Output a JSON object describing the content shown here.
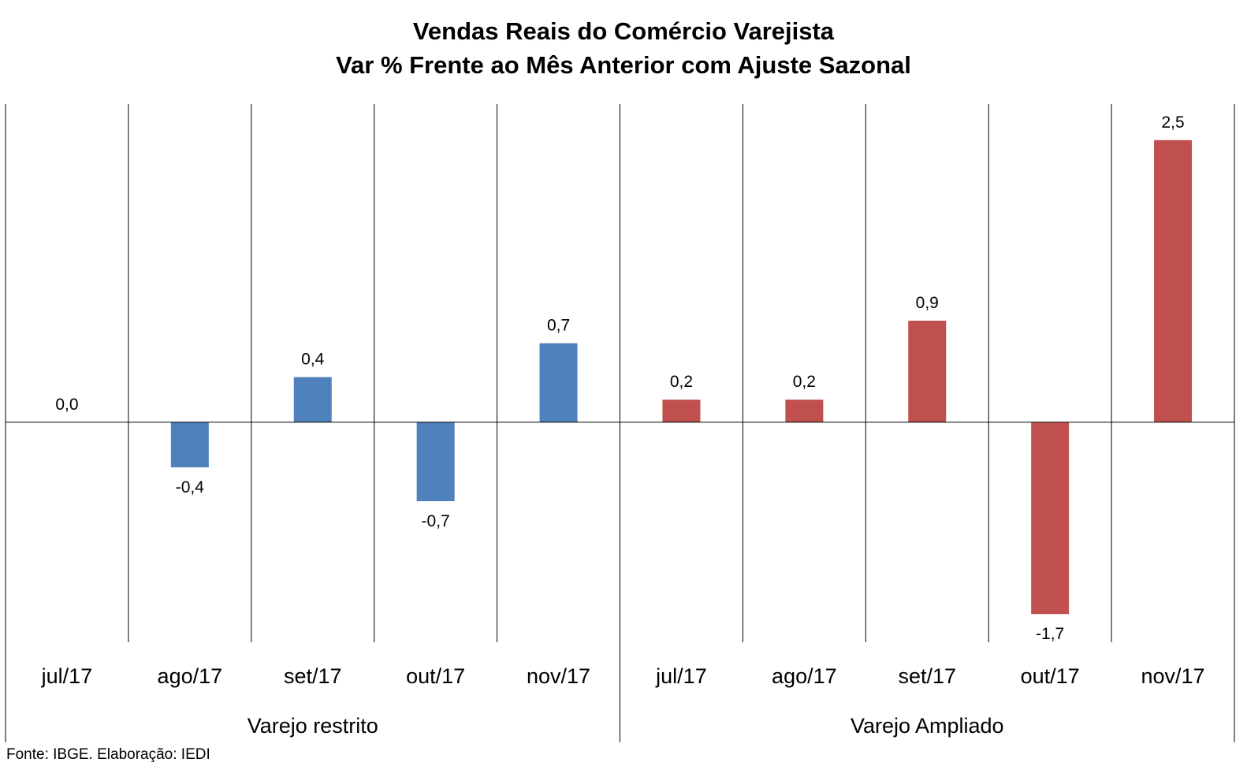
{
  "chart_data": {
    "type": "bar",
    "title": "Vendas Reais do Comércio Varejista",
    "subtitle": "Var % Frente ao Mês Anterior com Ajuste Sazonal",
    "groups": [
      {
        "name": "Varejo restrito",
        "color": "#4F81BD",
        "categories": [
          "jul/17",
          "ago/17",
          "set/17",
          "out/17",
          "nov/17"
        ],
        "values": [
          0.0,
          -0.4,
          0.4,
          -0.7,
          0.7
        ],
        "labels": [
          "0,0",
          "-0,4",
          "0,4",
          "-0,7",
          "0,7"
        ]
      },
      {
        "name": "Varejo Ampliado",
        "color": "#C0504D",
        "categories": [
          "jul/17",
          "ago/17",
          "set/17",
          "out/17",
          "nov/17"
        ],
        "values": [
          0.2,
          0.2,
          0.9,
          -1.7,
          2.5
        ],
        "labels": [
          "0,2",
          "0,2",
          "0,9",
          "-1,7",
          "2,5"
        ]
      }
    ],
    "ylim": [
      -1.95,
      2.82
    ],
    "y_axis_visible": false,
    "gridlines": "vertical category separators",
    "legend": "none"
  },
  "source": "Fonte: IBGE. Elaboração: IEDI"
}
